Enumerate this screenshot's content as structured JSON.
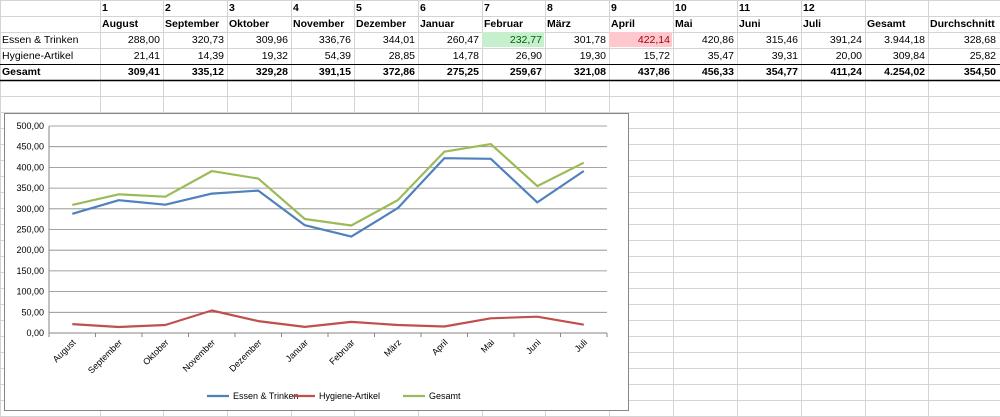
{
  "sheet": {
    "header_numbers": [
      "1",
      "2",
      "3",
      "4",
      "5",
      "6",
      "7",
      "8",
      "9",
      "10",
      "11",
      "12"
    ],
    "header_months": [
      "August",
      "September",
      "Oktober",
      "November",
      "Dezember",
      "Januar",
      "Februar",
      "März",
      "April",
      "Mai",
      "Juni",
      "Juli"
    ],
    "header_gesamt": "Gesamt",
    "header_durchschnitt": "Durchschnitt",
    "rows": [
      {
        "label": "Essen & Trinken",
        "values": [
          "288,00",
          "320,73",
          "309,96",
          "336,76",
          "344,01",
          "260,47",
          "232,77",
          "301,78",
          "422,14",
          "420,86",
          "315,46",
          "391,24"
        ],
        "gesamt": "3.944,18",
        "durchschnitt": "328,68"
      },
      {
        "label": "Hygiene-Artikel",
        "values": [
          "21,41",
          "14,39",
          "19,32",
          "54,39",
          "28,85",
          "14,78",
          "26,90",
          "19,30",
          "15,72",
          "35,47",
          "39,31",
          "20,00"
        ],
        "gesamt": "309,84",
        "durchschnitt": "25,82"
      },
      {
        "label": "Gesamt",
        "values": [
          "309,41",
          "335,12",
          "329,28",
          "391,15",
          "372,86",
          "275,25",
          "259,67",
          "321,08",
          "437,86",
          "456,33",
          "354,77",
          "411,24"
        ],
        "gesamt": "4.254,02",
        "durchschnitt": "354,50"
      }
    ],
    "colors": {
      "highlight_green": "#c6efce",
      "highlight_red": "#ffc7ce",
      "text_red": "#9c0006",
      "text_green": "#006100"
    }
  },
  "chart_data": {
    "type": "line",
    "categories": [
      "August",
      "September",
      "Oktober",
      "November",
      "Dezember",
      "Januar",
      "Februar",
      "März",
      "April",
      "Mai",
      "Juni",
      "Juli"
    ],
    "series": [
      {
        "name": "Essen & Trinken",
        "color": "#4f81bd",
        "values": [
          288.0,
          320.73,
          309.96,
          336.76,
          344.01,
          260.47,
          232.77,
          301.78,
          422.14,
          420.86,
          315.46,
          391.24
        ]
      },
      {
        "name": "Hygiene-Artikel",
        "color": "#c0504d",
        "values": [
          21.41,
          14.39,
          19.32,
          54.39,
          28.85,
          14.78,
          26.9,
          19.3,
          15.72,
          35.47,
          39.31,
          20.0
        ]
      },
      {
        "name": "Gesamt",
        "color": "#9bbb59",
        "values": [
          309.41,
          335.12,
          329.28,
          391.15,
          372.86,
          275.25,
          259.67,
          321.08,
          437.86,
          456.33,
          354.77,
          411.24
        ]
      }
    ],
    "y_ticks": [
      "0,00",
      "50,00",
      "100,00",
      "150,00",
      "200,00",
      "250,00",
      "300,00",
      "350,00",
      "400,00",
      "450,00",
      "500,00"
    ],
    "ylim": [
      0,
      500
    ],
    "grid": true,
    "legend": "bottom"
  }
}
